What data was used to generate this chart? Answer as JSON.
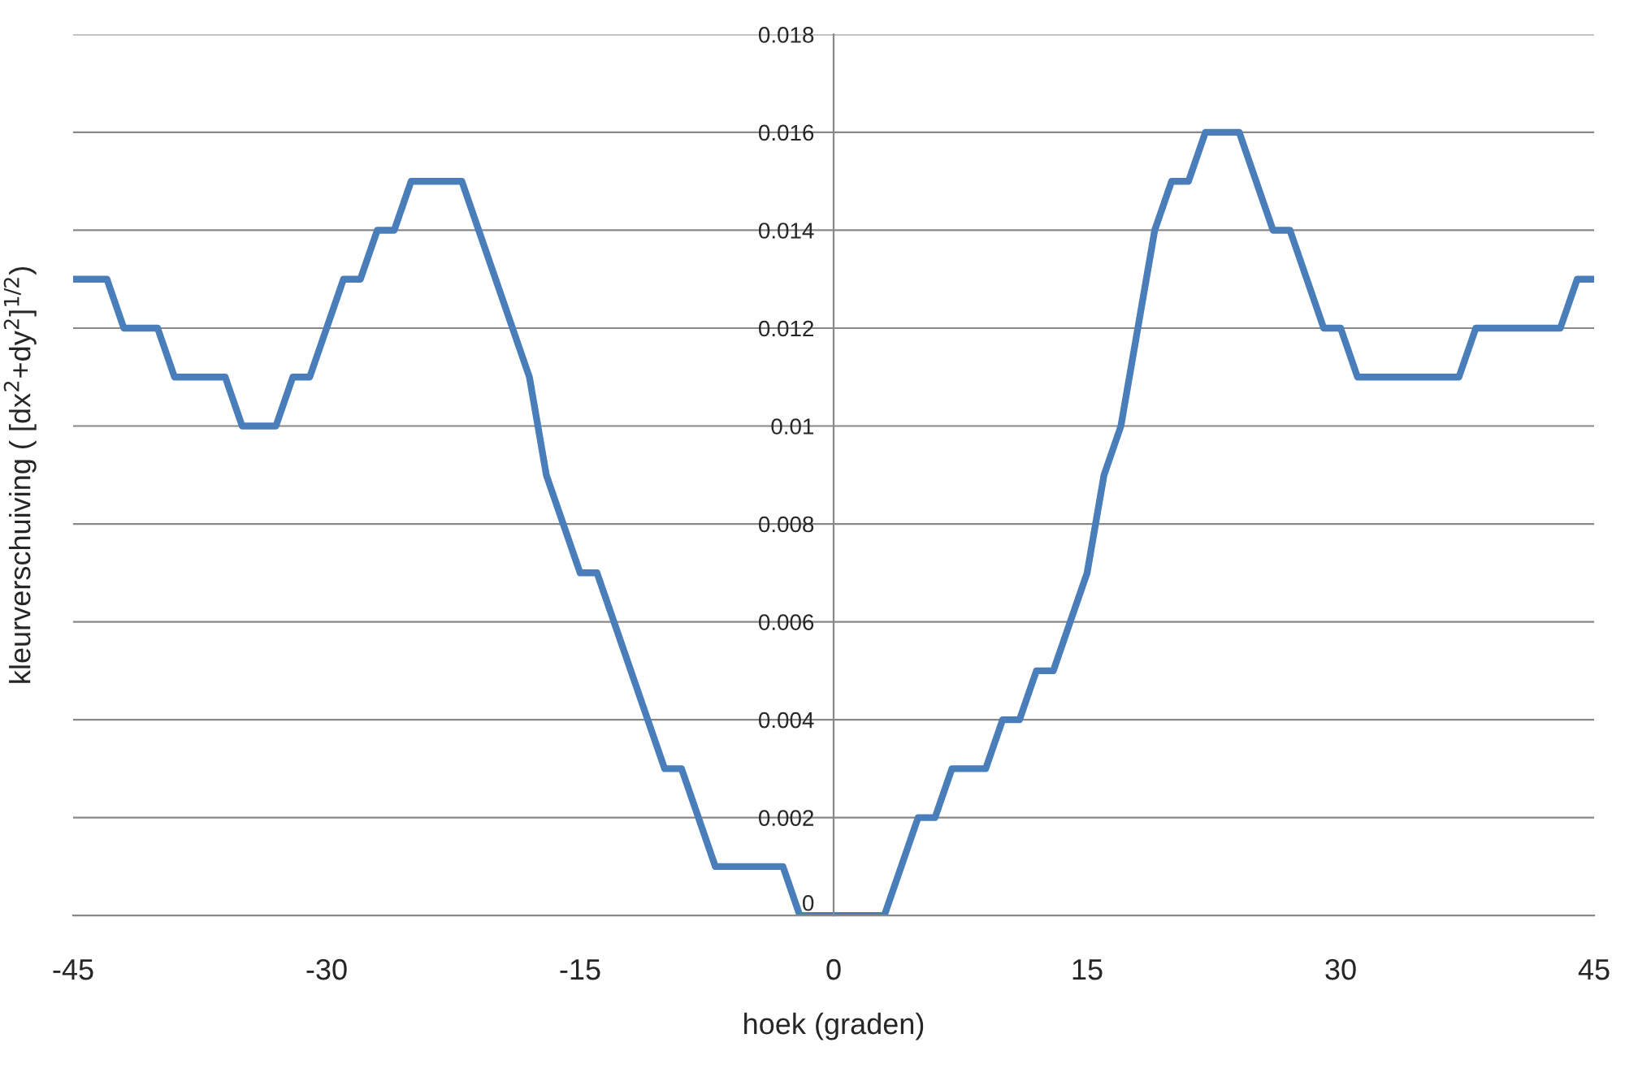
{
  "chart_data": {
    "type": "line",
    "xlabel": "hoek (graden)",
    "ylabel": "kleurverschuiving ( [dx$^{2}$+dy$^{2}$]$^{1/2}$)",
    "x": [
      -45,
      -43,
      -42,
      -40,
      -39,
      -36,
      -35,
      -33,
      -32,
      -31,
      -29,
      -28,
      -27,
      -26,
      -25,
      -22,
      -18,
      -17,
      -15,
      -14,
      -10,
      -9,
      -7,
      -3,
      -2,
      3,
      5,
      6,
      7,
      9,
      10,
      11,
      12,
      13,
      15,
      16,
      17,
      19,
      20,
      21,
      22,
      24,
      26,
      27,
      29,
      30,
      31,
      37,
      38,
      43,
      44,
      45
    ],
    "series": [
      {
        "color": "#4a7ebb",
        "values": [
          0.013,
          0.013,
          0.012,
          0.012,
          0.011,
          0.011,
          0.01,
          0.01,
          0.011,
          0.011,
          0.013,
          0.013,
          0.014,
          0.014,
          0.015,
          0.015,
          0.011,
          0.009,
          0.007,
          0.007,
          0.003,
          0.003,
          0.001,
          0.001,
          0,
          0,
          0.002,
          0.002,
          0.003,
          0.003,
          0.004,
          0.004,
          0.005,
          0.005,
          0.007,
          0.009,
          0.01,
          0.014,
          0.015,
          0.015,
          0.016,
          0.016,
          0.014,
          0.014,
          0.012,
          0.012,
          0.011,
          0.011,
          0.012,
          0.012,
          0.013,
          0.013
        ]
      }
    ],
    "xlim": [
      -45,
      45
    ],
    "ylim": [
      0,
      0.018
    ],
    "xticks": [
      -45,
      -30,
      -15,
      0,
      15,
      30,
      45
    ],
    "yticks": [
      0,
      0.002,
      0.004,
      0.006,
      0.008,
      0.01,
      0.012,
      0.014,
      0.016,
      0.018
    ],
    "grid": "y",
    "marker": "none",
    "line_style": "solid",
    "legend": false
  }
}
